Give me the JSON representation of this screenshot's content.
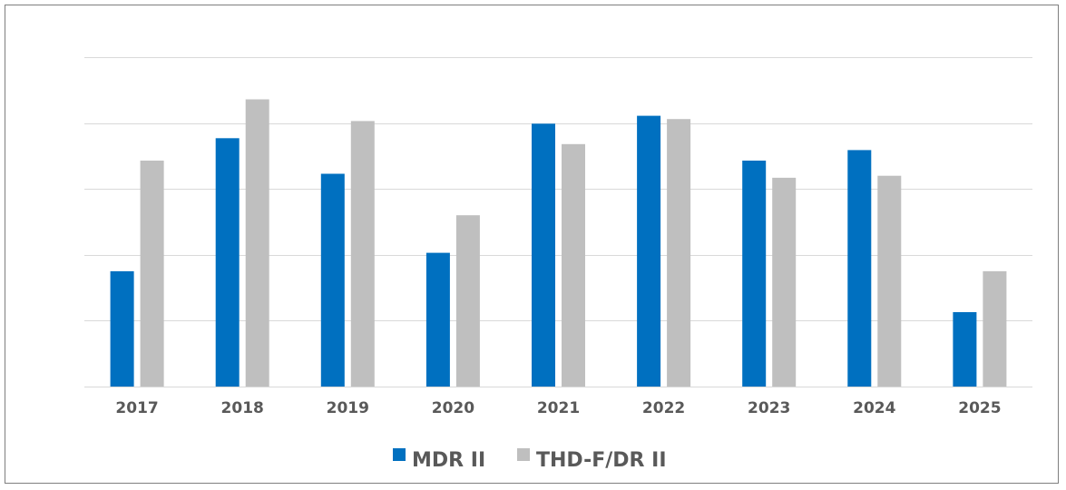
{
  "chart_data": {
    "type": "bar",
    "title": "",
    "xlabel": "",
    "ylabel": "",
    "categories": [
      "2017",
      "2018",
      "2019",
      "2020",
      "2021",
      "2022",
      "2023",
      "2024",
      "2025"
    ],
    "series": [
      {
        "name": "MDR II",
        "color": "#0070c0",
        "values": [
          1.75,
          3.77,
          3.23,
          2.03,
          3.99,
          4.11,
          3.43,
          3.59,
          1.13
        ]
      },
      {
        "name": "THD-F/DR II",
        "color": "#bfbfbf",
        "values": [
          3.43,
          4.36,
          4.03,
          2.6,
          3.68,
          4.06,
          3.17,
          3.2,
          1.75
        ]
      }
    ],
    "ylim": [
      0,
      5
    ],
    "y_axis_labels_shown": false,
    "grid": true,
    "gridline_color": "#d9d9d9",
    "legend_position": "bottom"
  }
}
